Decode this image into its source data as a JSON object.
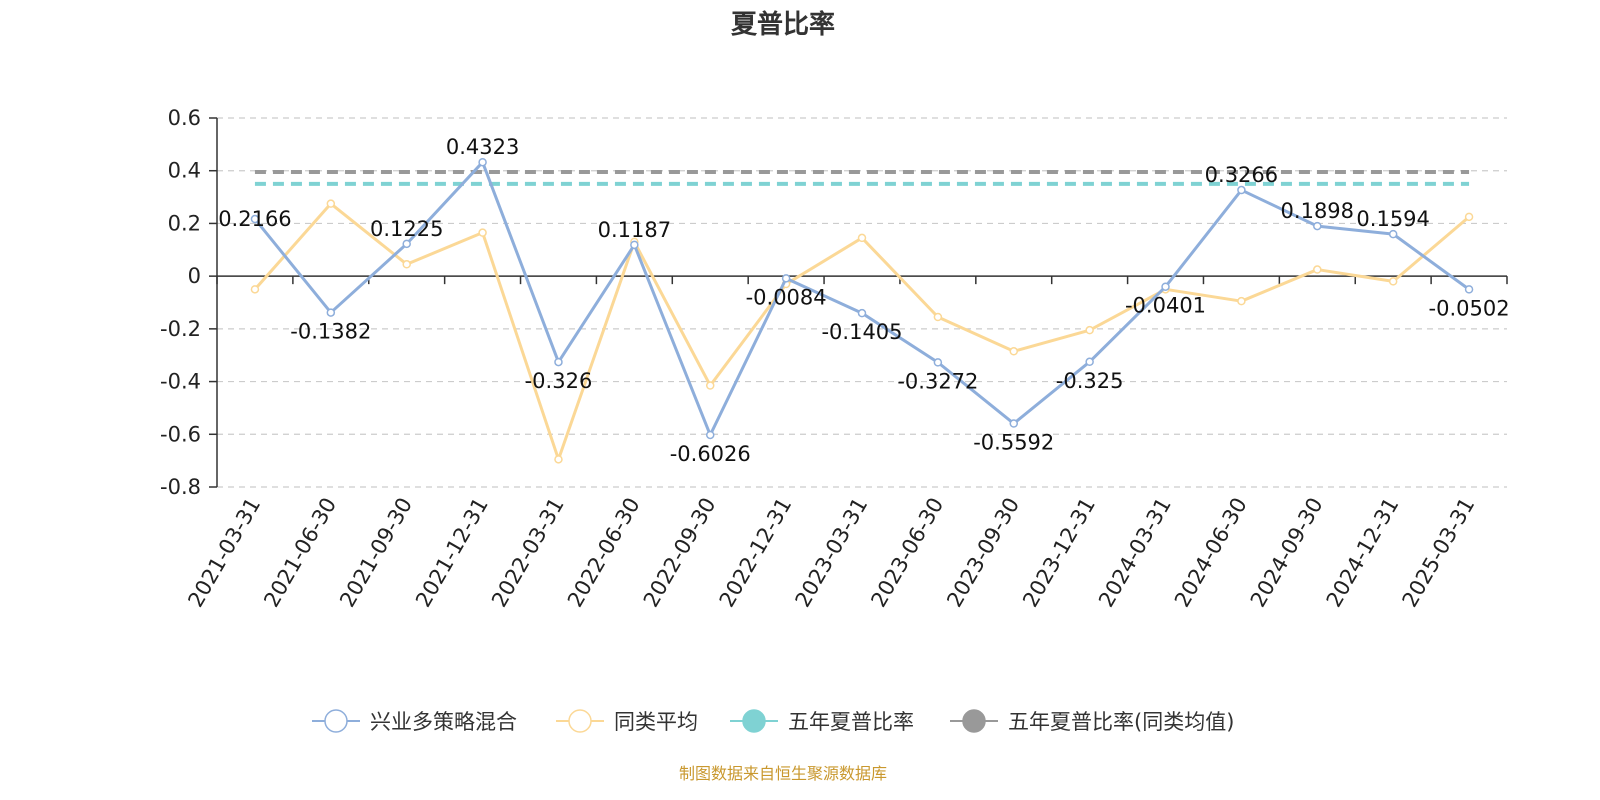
{
  "chart_data": {
    "type": "line",
    "title": "夏普比率",
    "source": "制图数据来自恒生聚源数据库",
    "categories": [
      "2021-03-31",
      "2021-06-30",
      "2021-09-30",
      "2021-12-31",
      "2022-03-31",
      "2022-06-30",
      "2022-09-30",
      "2022-12-31",
      "2023-03-31",
      "2023-06-30",
      "2023-09-30",
      "2023-12-31",
      "2024-03-31",
      "2024-06-30",
      "2024-09-30",
      "2024-12-31",
      "2025-03-31"
    ],
    "ylim": [
      -0.8,
      0.6
    ],
    "yticks": [
      0.6,
      0.4,
      0.2,
      0,
      -0.2,
      -0.4,
      -0.6,
      -0.8
    ],
    "ytick_labels": [
      "0.6",
      "0.4",
      "0.2",
      "0",
      "-0.2",
      "-0.4",
      "-0.6",
      "-0.8"
    ],
    "grid": true,
    "legend_position": "bottom",
    "series": [
      {
        "name": "兴业多策略混合",
        "color": "#8eaedb",
        "values": [
          0.2166,
          -0.1382,
          0.1225,
          0.4323,
          -0.326,
          0.1187,
          -0.6026,
          -0.0084,
          -0.1405,
          -0.3272,
          -0.5592,
          -0.325,
          -0.0401,
          0.3266,
          0.1898,
          0.1594,
          -0.0502
        ],
        "labels": [
          "0.2166",
          "-0.1382",
          "0.1225",
          "0.4323",
          "-0.326",
          "0.1187",
          "-0.6026",
          "-0.0084",
          "-0.1405",
          "-0.3272",
          "-0.5592",
          "-0.325",
          "-0.0401",
          "0.3266",
          "0.1898",
          "0.1594",
          "-0.0502"
        ]
      },
      {
        "name": "同类平均",
        "color": "#fbd896",
        "values": [
          -0.05,
          0.275,
          0.045,
          0.165,
          -0.695,
          0.13,
          -0.415,
          -0.03,
          0.145,
          -0.155,
          -0.285,
          -0.205,
          -0.05,
          -0.095,
          0.025,
          -0.02,
          0.225
        ]
      }
    ],
    "reference_lines": [
      {
        "name": "五年夏普比率",
        "color": "#7fd2d3",
        "value": 0.35
      },
      {
        "name": "五年夏普比率(同类均值)",
        "color": "#999999",
        "value": 0.395
      }
    ]
  }
}
